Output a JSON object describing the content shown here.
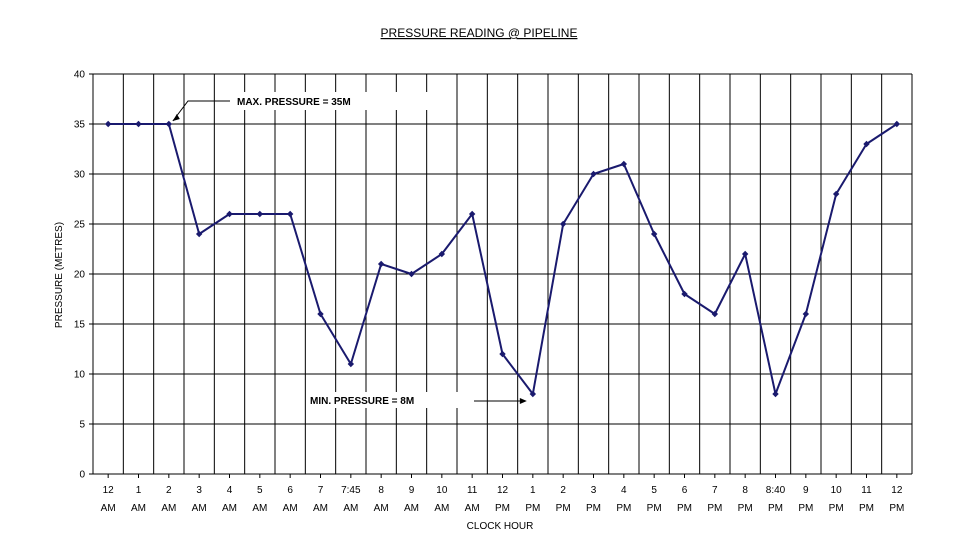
{
  "chart_data": {
    "type": "line",
    "title": "PRESSURE READING @ PIPELINE",
    "xlabel": "CLOCK HOUR",
    "ylabel": "PRESSURE (METRES)",
    "ylim": [
      0,
      40
    ],
    "yticks": [
      0,
      5,
      10,
      15,
      20,
      25,
      30,
      35,
      40
    ],
    "grid": true,
    "line_color": "#1a1a6e",
    "categories": [
      [
        "12",
        "AM"
      ],
      [
        "1",
        "AM"
      ],
      [
        "2",
        "AM"
      ],
      [
        "3",
        "AM"
      ],
      [
        "4",
        "AM"
      ],
      [
        "5",
        "AM"
      ],
      [
        "6",
        "AM"
      ],
      [
        "7",
        "AM"
      ],
      [
        "7:45",
        "AM"
      ],
      [
        "8",
        "AM"
      ],
      [
        "9",
        "AM"
      ],
      [
        "10",
        "AM"
      ],
      [
        "11",
        "AM"
      ],
      [
        "12",
        "PM"
      ],
      [
        "1",
        "PM"
      ],
      [
        "2",
        "PM"
      ],
      [
        "3",
        "PM"
      ],
      [
        "4",
        "PM"
      ],
      [
        "5",
        "PM"
      ],
      [
        "6",
        "PM"
      ],
      [
        "7",
        "PM"
      ],
      [
        "8",
        "PM"
      ],
      [
        "8:40",
        "PM"
      ],
      [
        "9",
        "PM"
      ],
      [
        "10",
        "PM"
      ],
      [
        "11",
        "PM"
      ],
      [
        "12",
        "PM"
      ]
    ],
    "values": [
      35,
      35,
      35,
      24,
      26,
      26,
      26,
      16,
      11,
      21,
      20,
      22,
      26,
      12,
      8,
      25,
      30,
      31,
      24,
      18,
      16,
      22,
      8,
      16,
      28,
      33,
      35
    ],
    "annotations": [
      {
        "text": "MAX. PRESSURE = 35M",
        "point_index": 2
      },
      {
        "text": "MIN. PRESSURE = 8M",
        "point_index": 14
      }
    ]
  }
}
